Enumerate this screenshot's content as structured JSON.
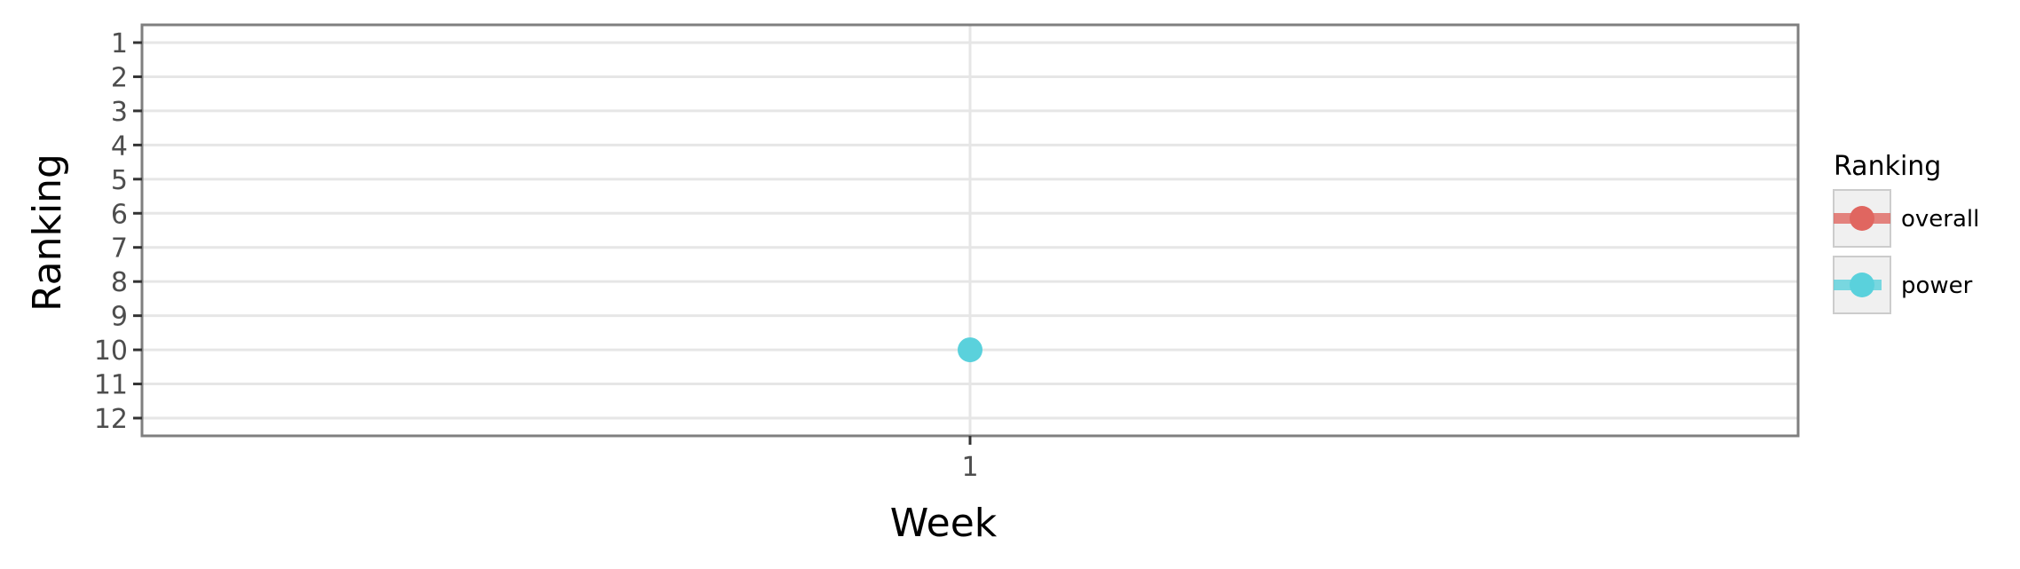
{
  "chart_data": {
    "type": "line",
    "xlabel": "Week",
    "ylabel": "Ranking",
    "x_ticks": [
      "1"
    ],
    "y_ticks": [
      1,
      2,
      3,
      4,
      5,
      6,
      7,
      8,
      9,
      10,
      11,
      12
    ],
    "ylim": [
      12.5,
      0.5
    ],
    "y_reversed": true,
    "grid": true,
    "legend": {
      "title": "Ranking",
      "position": "right",
      "entries": [
        {
          "label": "overall",
          "color": "#e06660"
        },
        {
          "label": "power",
          "color": "#5ad1dc"
        }
      ]
    },
    "series": [
      {
        "name": "overall",
        "color": "#e06660",
        "points": []
      },
      {
        "name": "power",
        "color": "#5ad1dc",
        "points": [
          {
            "x": "1",
            "y": 10
          }
        ]
      }
    ]
  }
}
